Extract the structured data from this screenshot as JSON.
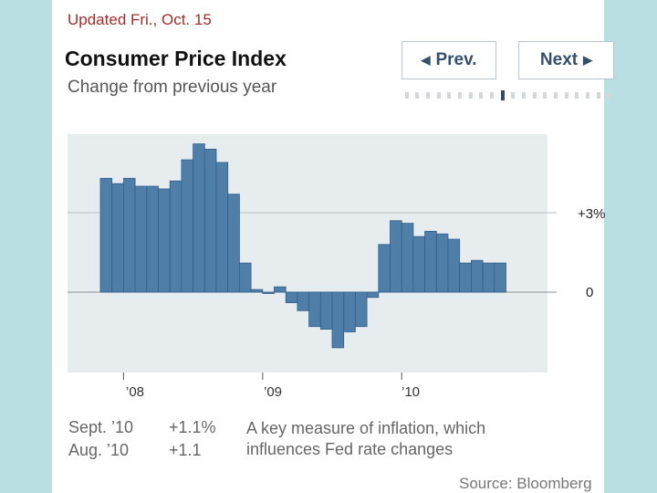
{
  "header": {
    "updated": "Updated Fri., Oct. 15",
    "title": "Consumer Price Index",
    "subtitle": "Change from previous year"
  },
  "nav": {
    "prev_label": "Prev.",
    "next_label": "Next",
    "page_count": 20,
    "current_page": 9
  },
  "footer": {
    "row1_label": "Sept. ’10",
    "row1_value": "+1.1%",
    "row2_label": "Aug. ’10",
    "row2_value": "+1.1",
    "note": "A key measure of inflation, which influences Fed rate changes",
    "source": "Source: Bloomberg"
  },
  "colors": {
    "bar": "#4f7ea8",
    "bar_edge": "#2f5f8c",
    "accent_red": "#a02d2d"
  },
  "chart_data": {
    "type": "bar",
    "title": "Consumer Price Index",
    "subtitle": "Change from previous year",
    "units": "percent",
    "categories": [
      "Nov '07",
      "Dec '07",
      "Jan '08",
      "Feb '08",
      "Mar '08",
      "Apr '08",
      "May '08",
      "Jun '08",
      "Jul '08",
      "Aug '08",
      "Sep '08",
      "Oct '08",
      "Nov '08",
      "Dec '08",
      "Jan '09",
      "Feb '09",
      "Mar '09",
      "Apr '09",
      "May '09",
      "Jun '09",
      "Jul '09",
      "Aug '09",
      "Sep '09",
      "Oct '09",
      "Nov '09",
      "Dec '09",
      "Jan '10",
      "Feb '10",
      "Mar '10",
      "Apr '10",
      "May '10",
      "Jun '10",
      "Jul '10",
      "Aug '10",
      "Sep '10"
    ],
    "values": [
      4.3,
      4.1,
      4.3,
      4.0,
      4.0,
      3.9,
      4.2,
      5.0,
      5.6,
      5.4,
      4.9,
      3.7,
      1.1,
      0.1,
      0.0,
      0.2,
      -0.4,
      -0.7,
      -1.3,
      -1.4,
      -2.1,
      -1.5,
      -1.3,
      -0.2,
      1.8,
      2.7,
      2.6,
      2.1,
      2.3,
      2.2,
      2.0,
      1.1,
      1.2,
      1.1,
      1.1
    ],
    "x_tick_labels": [
      "’08",
      "’09",
      "’10"
    ],
    "y_tick_labels": [
      "+3%",
      "0"
    ],
    "y_ticks": [
      3,
      0
    ],
    "ylim": [
      -3,
      6
    ]
  }
}
